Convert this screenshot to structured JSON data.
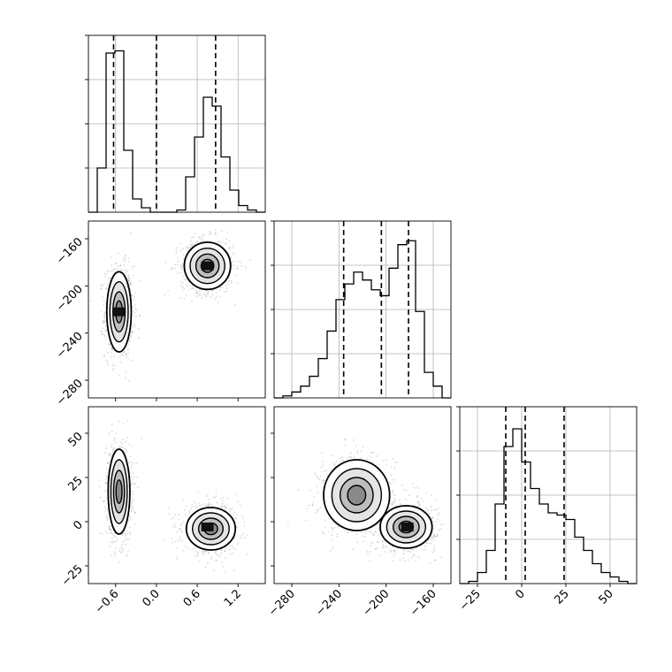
{
  "chart_data": {
    "type": "corner",
    "title": "",
    "parameters": [
      {
        "label": "",
        "range": [
          -1.0,
          1.6
        ],
        "ticks": [
          -0.6,
          0.0,
          0.6,
          1.2
        ],
        "tick_labels": [
          "−0.6",
          "0.0",
          "0.6",
          "1.2"
        ]
      },
      {
        "label": "",
        "range": [
          -295,
          -145
        ],
        "ticks": [
          -280,
          -240,
          -200,
          -160
        ],
        "tick_labels": [
          "−280",
          "−240",
          "−200",
          "−160"
        ]
      },
      {
        "label": "",
        "range": [
          -35,
          65
        ],
        "ticks": [
          -25,
          0,
          25,
          50
        ],
        "tick_labels": [
          "−25",
          "0",
          "25",
          "50"
        ]
      }
    ],
    "grid": true,
    "histograms": [
      {
        "parameter": 0,
        "bin_edges": [
          -1.0,
          -0.87,
          -0.74,
          -0.61,
          -0.48,
          -0.35,
          -0.22,
          -0.09,
          0.04,
          0.17,
          0.3,
          0.43,
          0.56,
          0.69,
          0.82,
          0.95,
          1.08,
          1.21,
          1.34,
          1.47,
          1.6
        ],
        "counts": [
          0,
          0.2,
          0.72,
          0.73,
          0.28,
          0.06,
          0.02,
          0,
          0,
          0,
          0.01,
          0.16,
          0.34,
          0.52,
          0.48,
          0.25,
          0.1,
          0.03,
          0.01,
          0
        ],
        "ymax": 0.8,
        "quantiles": [
          -0.63,
          0.0,
          0.87
        ]
      },
      {
        "parameter": 1,
        "bin_edges": [
          -295,
          -287.5,
          -280,
          -272.5,
          -265,
          -257.5,
          -250,
          -242.5,
          -235,
          -227.5,
          -220,
          -212.5,
          -205,
          -197.5,
          -190,
          -182.5,
          -175,
          -167.5,
          -160,
          -152.5,
          -145
        ],
        "counts": [
          0,
          0.01,
          0.03,
          0.06,
          0.11,
          0.2,
          0.34,
          0.5,
          0.58,
          0.64,
          0.6,
          0.55,
          0.52,
          0.66,
          0.78,
          0.8,
          0.44,
          0.13,
          0.06,
          0
        ],
        "ymax": 0.9,
        "quantiles": [
          -236,
          -204,
          -181
        ]
      },
      {
        "parameter": 2,
        "bin_edges": [
          -35,
          -30,
          -25,
          -20,
          -15,
          -10,
          -5,
          0,
          5,
          10,
          15,
          20,
          25,
          30,
          35,
          40,
          45,
          50,
          55,
          60,
          65
        ],
        "counts": [
          0,
          0.01,
          0.05,
          0.15,
          0.36,
          0.62,
          0.7,
          0.55,
          0.43,
          0.36,
          0.32,
          0.31,
          0.29,
          0.21,
          0.15,
          0.09,
          0.05,
          0.03,
          0.01,
          0
        ],
        "ymax": 0.8,
        "quantiles": [
          -9,
          2,
          24
        ]
      }
    ],
    "pairs": [
      {
        "x_param": 0,
        "y_param": 1,
        "modes": [
          {
            "center": [
              -0.55,
              -222
            ],
            "spread": [
              0.09,
              17
            ],
            "weight": 1.0
          },
          {
            "center": [
              0.75,
              -183
            ],
            "spread": [
              0.17,
              10
            ],
            "weight": 0.9
          }
        ],
        "peak_cells": [
          [
            -0.55,
            -222
          ],
          [
            0.75,
            -183
          ]
        ]
      },
      {
        "x_param": 0,
        "y_param": 2,
        "modes": [
          {
            "center": [
              -0.55,
              17
            ],
            "spread": [
              0.08,
              12
            ],
            "weight": 1.0
          },
          {
            "center": [
              0.8,
              -4
            ],
            "spread": [
              0.18,
              6
            ],
            "weight": 0.9
          }
        ],
        "peak_cells": [
          [
            0.75,
            -3
          ]
        ]
      },
      {
        "x_param": 1,
        "y_param": 2,
        "modes": [
          {
            "center": [
              -225,
              15
            ],
            "spread": [
              14,
              10
            ],
            "weight": 0.8
          },
          {
            "center": [
              -183,
              -3
            ],
            "spread": [
              11,
              6
            ],
            "weight": 1.0
          }
        ],
        "peak_cells": [
          [
            -182,
            -3
          ]
        ]
      }
    ]
  }
}
